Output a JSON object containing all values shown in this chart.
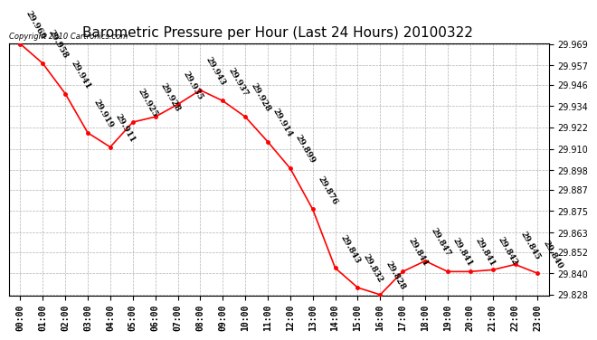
{
  "title": "Barometric Pressure per Hour (Last 24 Hours) 20100322",
  "copyright": "Copyright 2010 Cartronics.com",
  "hours": [
    "00:00",
    "01:00",
    "02:00",
    "03:00",
    "04:00",
    "05:00",
    "06:00",
    "07:00",
    "08:00",
    "09:00",
    "10:00",
    "11:00",
    "12:00",
    "13:00",
    "14:00",
    "15:00",
    "16:00",
    "17:00",
    "18:00",
    "19:00",
    "20:00",
    "21:00",
    "22:00",
    "23:00"
  ],
  "values": [
    29.969,
    29.958,
    29.941,
    29.919,
    29.911,
    29.925,
    29.928,
    29.935,
    29.943,
    29.937,
    29.928,
    29.914,
    29.899,
    29.876,
    29.843,
    29.832,
    29.828,
    29.841,
    29.847,
    29.841,
    29.841,
    29.842,
    29.845,
    29.84
  ],
  "ylim_min": 29.828,
  "ylim_max": 29.969,
  "yticks": [
    29.828,
    29.84,
    29.852,
    29.863,
    29.875,
    29.887,
    29.898,
    29.91,
    29.922,
    29.934,
    29.946,
    29.957,
    29.969
  ],
  "line_color": "#ff0000",
  "marker_color": "#ff0000",
  "bg_color": "#ffffff",
  "plot_bg_color": "#ffffff",
  "grid_color": "#b0b0b0",
  "title_fontsize": 11,
  "tick_fontsize": 7,
  "label_fontsize": 6.5,
  "copyright_fontsize": 6
}
